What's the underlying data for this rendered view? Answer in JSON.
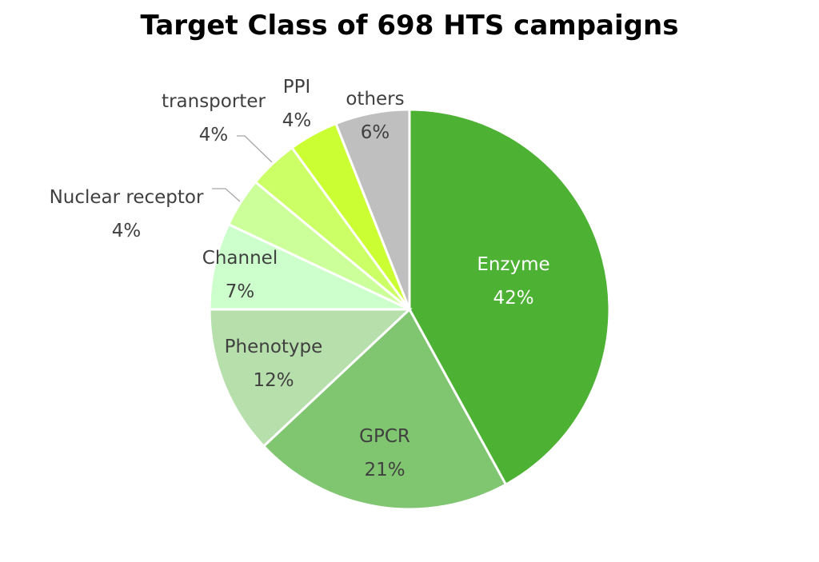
{
  "chart_data": {
    "type": "pie",
    "title": "Target Class of 698 HTS campaigns",
    "start": "12 o'clock",
    "direction": "clockwise",
    "slices": [
      {
        "label": "Enzyme",
        "value": 42,
        "display": "42%",
        "color": "#4db133",
        "label_color": "#ffffff"
      },
      {
        "label": "GPCR",
        "value": 21,
        "display": "21%",
        "color": "#80c670",
        "label_color": "#404040"
      },
      {
        "label": "Phenotype",
        "value": 12,
        "display": "12%",
        "color": "#b7dfac",
        "label_color": "#404040"
      },
      {
        "label": "Channel",
        "value": 7,
        "display": "7%",
        "color": "#ccffcc",
        "label_color": "#404040"
      },
      {
        "label": "Nuclear receptor",
        "value": 4,
        "display": "4%",
        "color": "#ccff99",
        "label_color": "#404040"
      },
      {
        "label": "transporter",
        "value": 4,
        "display": "4%",
        "color": "#ccff66",
        "label_color": "#404040"
      },
      {
        "label": "PPI",
        "value": 4,
        "display": "4%",
        "color": "#ccff33",
        "label_color": "#404040"
      },
      {
        "label": "others",
        "value": 6,
        "display": "6%",
        "color": "#bfbfbf",
        "label_color": "#404040"
      }
    ]
  }
}
